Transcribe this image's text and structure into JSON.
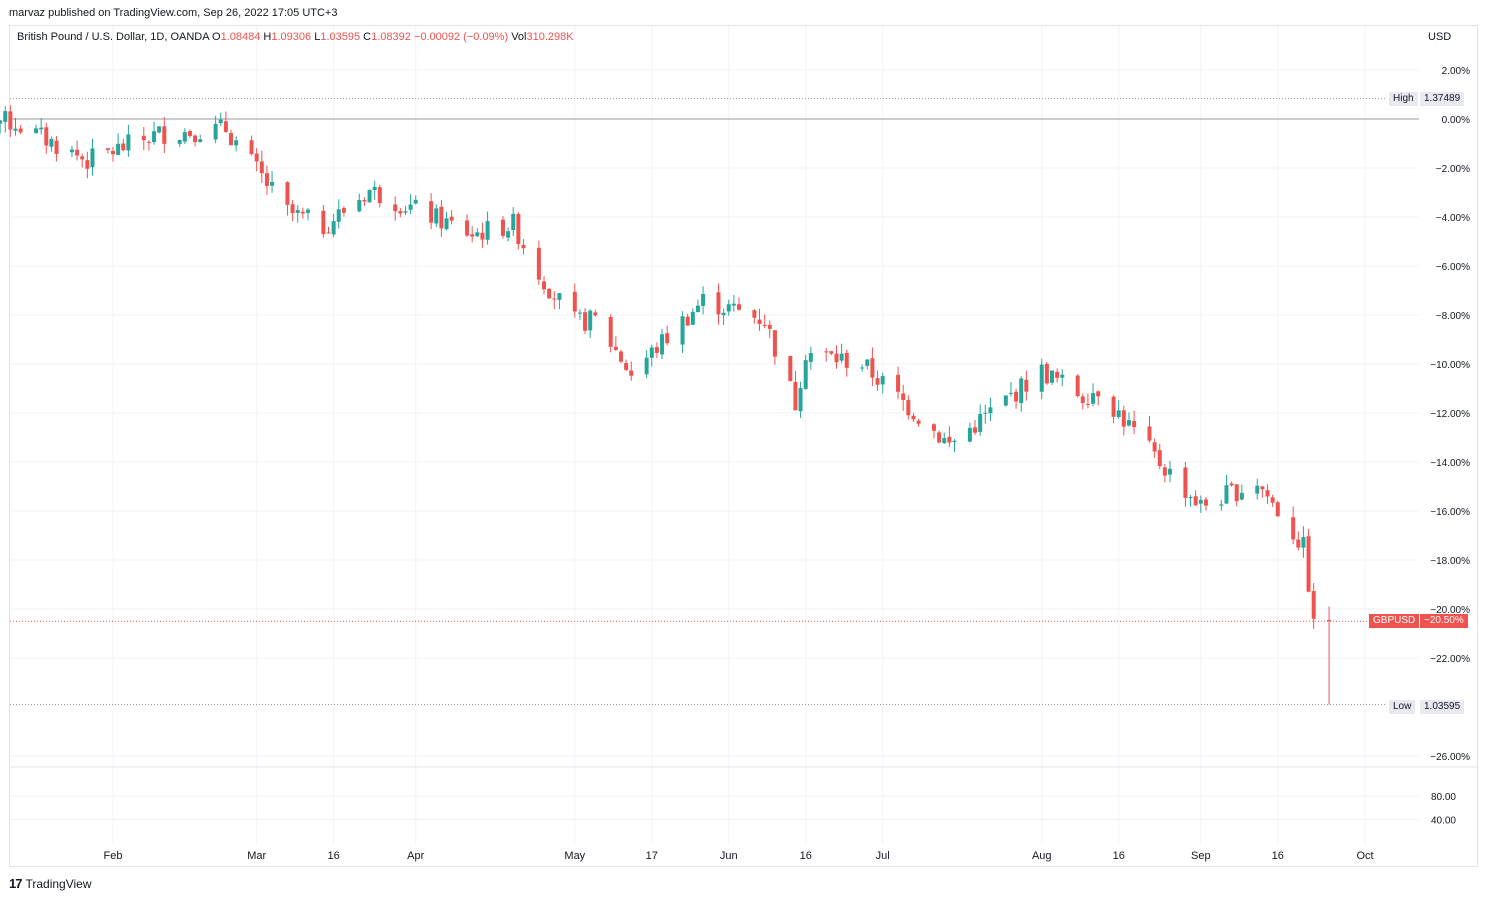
{
  "published": "marvaz published on TradingView.com, Sep 26, 2022 17:05 UTC+3",
  "legend": {
    "symbol": "British Pound / U.S. Dollar, 1D, OANDA",
    "o_label": "O",
    "o_value": "1.08484",
    "h_label": "H",
    "h_value": "1.09306",
    "l_label": "L",
    "l_value": "1.03595",
    "c_label": "C",
    "c_value": "1.08392",
    "change": "−0.00092 (−0.09%)",
    "vol_label": "Vol",
    "vol_value": "310.298K"
  },
  "currency": "USD",
  "markers": {
    "high_label": "High",
    "high_value": "1.37489",
    "low_label": "Low",
    "low_value": "1.03595",
    "current_label": "GBPUSD",
    "current_value": "−20.50%"
  },
  "footer": {
    "logo_mark": "17",
    "logo_text": "TradingView"
  },
  "colors": {
    "up": "#26a69a",
    "down": "#ef5350",
    "grid": "#f0f3fa",
    "text": "#131722"
  },
  "chart_data": {
    "type": "candlestick",
    "y_scale": "percent change",
    "ylim": [
      -26.5,
      2.5
    ],
    "y_ticks": [
      "2.00%",
      "0.00%",
      "−2.00%",
      "−4.00%",
      "−6.00%",
      "−8.00%",
      "−10.00%",
      "−12.00%",
      "−14.00%",
      "−16.00%",
      "−18.00%",
      "−20.00%",
      "−22.00%",
      "−26.00%"
    ],
    "y_tick_values": [
      2,
      0,
      -2,
      -4,
      -6,
      -8,
      -10,
      -12,
      -14,
      -16,
      -18,
      -20,
      -22,
      -26
    ],
    "x_ticks": [
      {
        "label": "Feb",
        "date": "2022-02-01"
      },
      {
        "label": "Mar",
        "date": "2022-03-01"
      },
      {
        "label": "16",
        "date": "2022-03-16"
      },
      {
        "label": "Apr",
        "date": "2022-04-01"
      },
      {
        "label": "May",
        "date": "2022-05-02"
      },
      {
        "label": "17",
        "date": "2022-05-17"
      },
      {
        "label": "Jun",
        "date": "2022-06-01"
      },
      {
        "label": "16",
        "date": "2022-06-16"
      },
      {
        "label": "Jul",
        "date": "2022-07-01"
      },
      {
        "label": "Aug",
        "date": "2022-08-01"
      },
      {
        "label": "16",
        "date": "2022-08-16"
      },
      {
        "label": "Sep",
        "date": "2022-09-01"
      },
      {
        "label": "16",
        "date": "2022-09-16"
      },
      {
        "label": "Oct",
        "date": "2022-10-03"
      }
    ],
    "volume_ticks": [
      "80.00",
      "40.00"
    ],
    "volume_tick_values": [
      80,
      40
    ],
    "high_line_pct": 0.83,
    "low_line_pct": -23.9,
    "current_line_pct": -20.5,
    "zero_line_pct": 0,
    "key_points": [
      {
        "date": "2022-01-03",
        "pct": 0.3
      },
      {
        "date": "2022-01-13",
        "pct": -0.2
      },
      {
        "date": "2022-01-27",
        "pct": -1.7
      },
      {
        "date": "2022-02-10",
        "pct": -0.6
      },
      {
        "date": "2022-02-23",
        "pct": -0.4
      },
      {
        "date": "2022-02-28",
        "pct": -1.8
      },
      {
        "date": "2022-03-07",
        "pct": -3.8
      },
      {
        "date": "2022-03-14",
        "pct": -4.4
      },
      {
        "date": "2022-03-23",
        "pct": -2.9
      },
      {
        "date": "2022-04-01",
        "pct": -3.7
      },
      {
        "date": "2022-04-12",
        "pct": -4.7
      },
      {
        "date": "2022-04-20",
        "pct": -4.3
      },
      {
        "date": "2022-04-25",
        "pct": -6.3
      },
      {
        "date": "2022-05-02",
        "pct": -8.3
      },
      {
        "date": "2022-05-06",
        "pct": -8.2
      },
      {
        "date": "2022-05-13",
        "pct": -10.4
      },
      {
        "date": "2022-05-27",
        "pct": -7.4
      },
      {
        "date": "2022-06-08",
        "pct": -8.2
      },
      {
        "date": "2022-06-14",
        "pct": -11.6
      },
      {
        "date": "2022-06-16",
        "pct": -9.5
      },
      {
        "date": "2022-06-27",
        "pct": -10.0
      },
      {
        "date": "2022-07-14",
        "pct": -13.3
      },
      {
        "date": "2022-08-01",
        "pct": -10.3
      },
      {
        "date": "2022-08-09",
        "pct": -11.3
      },
      {
        "date": "2022-08-12",
        "pct": -11.0
      },
      {
        "date": "2022-08-23",
        "pct": -13.8
      },
      {
        "date": "2022-09-01",
        "pct": -15.8
      },
      {
        "date": "2022-09-12",
        "pct": -14.8
      },
      {
        "date": "2022-09-21",
        "pct": -17.5
      },
      {
        "date": "2022-09-23",
        "pct": -20.4
      },
      {
        "date": "2022-09-26",
        "pct": -20.5
      }
    ]
  }
}
